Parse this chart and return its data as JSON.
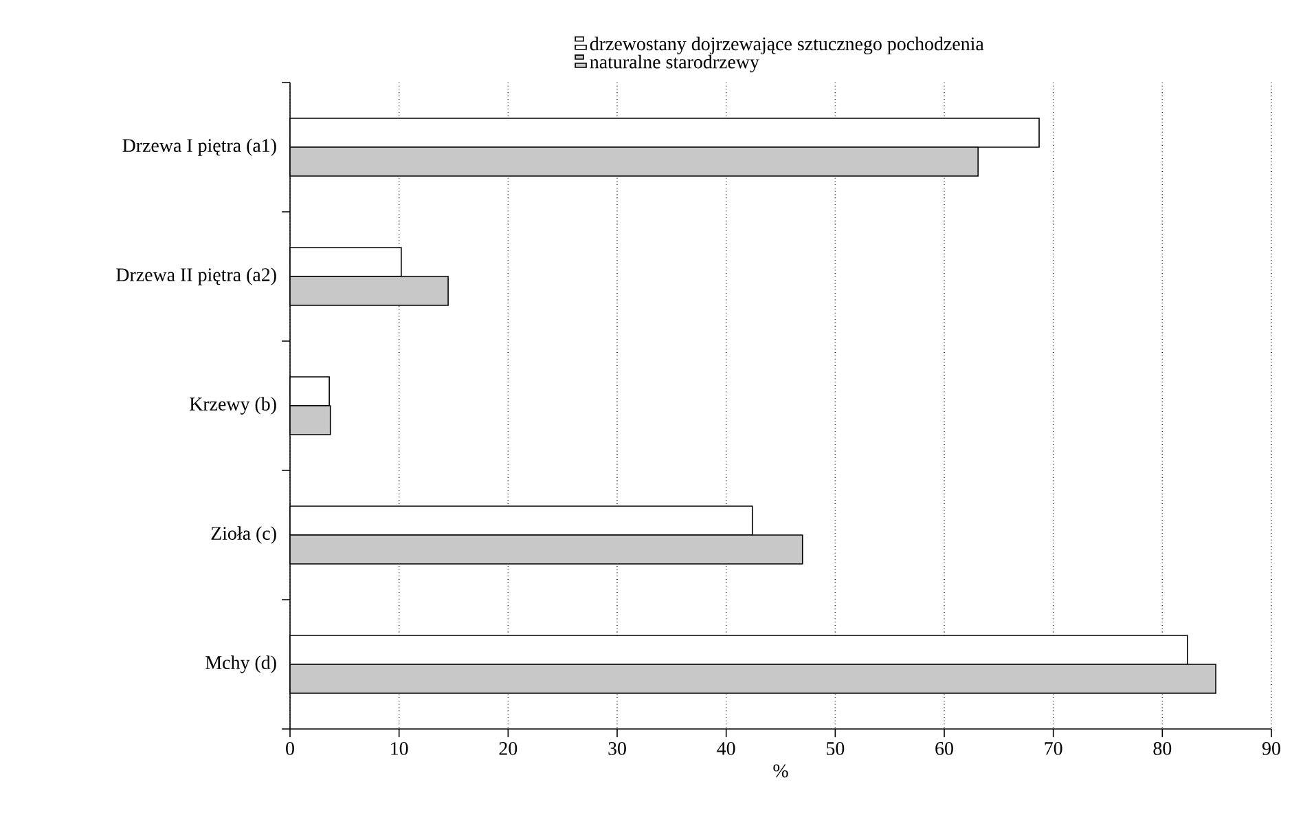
{
  "chart_data": {
    "type": "bar",
    "orientation": "horizontal",
    "categories": [
      "Drzewa I piętra (a1)",
      "Drzewa II piętra (a2)",
      "Krzewy (b)",
      "Zioła (c)",
      "Mchy  (d)"
    ],
    "series": [
      {
        "name": "drzewostany dojrzewające sztucznego pochodzenia",
        "color": "#ffffff",
        "values": [
          68.7,
          10.2,
          3.6,
          42.4,
          82.3
        ]
      },
      {
        "name": "naturalne starodrzewy",
        "color": "#c8c8c8",
        "values": [
          63.1,
          14.5,
          3.7,
          47.0,
          84.9
        ]
      }
    ],
    "xlabel": "%",
    "xlim": [
      0,
      90
    ],
    "xticks": [
      0,
      10,
      20,
      30,
      40,
      50,
      60,
      70,
      80,
      90
    ],
    "grid": "x",
    "legend": "top"
  }
}
